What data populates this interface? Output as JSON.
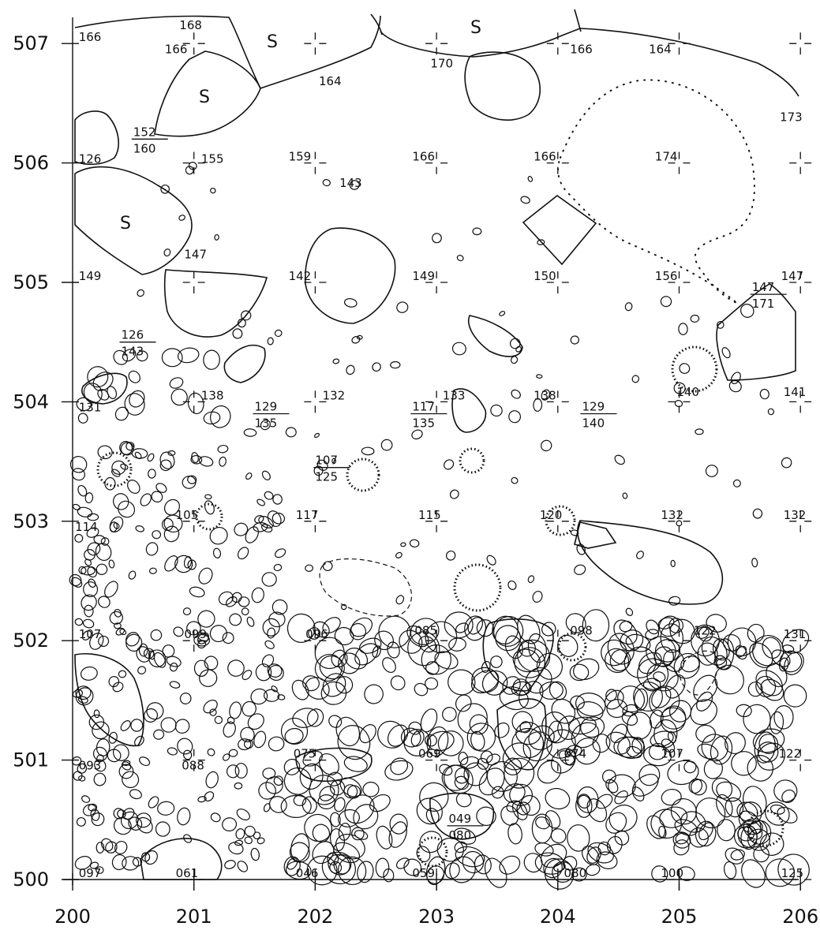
{
  "x_axis_labels": [
    "200",
    "201",
    "202",
    "203",
    "204",
    "205",
    "206"
  ],
  "y_axis_labels": [
    "507",
    "506",
    "505",
    "504",
    "503",
    "502",
    "501",
    "500"
  ],
  "stone_label": "S",
  "elevations": [
    {
      "text": "166",
      "e": 200.05,
      "n": 507.02
    },
    {
      "text": "168",
      "e": 200.88,
      "n": 507.12
    },
    {
      "text": "166",
      "e": 200.76,
      "n": 506.92
    },
    {
      "text": "170",
      "e": 202.95,
      "n": 506.8
    },
    {
      "text": "166",
      "e": 204.1,
      "n": 506.92
    },
    {
      "text": "164",
      "e": 204.75,
      "n": 506.92
    },
    {
      "text": "164",
      "e": 202.03,
      "n": 506.65
    },
    {
      "text": "173",
      "e": 205.83,
      "n": 506.35
    },
    {
      "text": "126",
      "e": 200.05,
      "n": 506.0
    },
    {
      "text": "155",
      "e": 201.06,
      "n": 506.0
    },
    {
      "text": "159",
      "e": 201.78,
      "n": 506.02
    },
    {
      "text": "166",
      "e": 202.8,
      "n": 506.02
    },
    {
      "text": "166",
      "e": 203.8,
      "n": 506.02
    },
    {
      "text": "174",
      "e": 204.8,
      "n": 506.02
    },
    {
      "text": "143",
      "e": 202.2,
      "n": 505.8
    },
    {
      "text": "147",
      "e": 200.92,
      "n": 505.2
    },
    {
      "text": "149",
      "e": 200.05,
      "n": 505.02
    },
    {
      "text": "142",
      "e": 201.78,
      "n": 505.02
    },
    {
      "text": "149",
      "e": 202.8,
      "n": 505.02
    },
    {
      "text": "150",
      "e": 203.8,
      "n": 505.02
    },
    {
      "text": "156",
      "e": 204.8,
      "n": 505.02
    },
    {
      "text": "147",
      "e": 205.84,
      "n": 505.02
    },
    {
      "text": "131",
      "e": 200.05,
      "n": 503.92
    },
    {
      "text": "138",
      "e": 201.06,
      "n": 504.02
    },
    {
      "text": "132",
      "e": 202.06,
      "n": 504.02
    },
    {
      "text": "133",
      "e": 203.05,
      "n": 504.02
    },
    {
      "text": "138",
      "e": 203.8,
      "n": 504.02
    },
    {
      "text": "140",
      "e": 204.98,
      "n": 504.05
    },
    {
      "text": "141",
      "e": 205.86,
      "n": 504.05
    },
    {
      "text": "114",
      "e": 200.02,
      "n": 502.92
    },
    {
      "text": "105",
      "e": 200.85,
      "n": 503.02
    },
    {
      "text": "117",
      "e": 201.84,
      "n": 503.02
    },
    {
      "text": "115",
      "e": 202.85,
      "n": 503.02
    },
    {
      "text": "120",
      "e": 203.85,
      "n": 503.02
    },
    {
      "text": "132",
      "e": 204.85,
      "n": 503.02
    },
    {
      "text": "132",
      "e": 205.86,
      "n": 503.02
    },
    {
      "text": "107",
      "e": 200.05,
      "n": 502.02
    },
    {
      "text": "099",
      "e": 200.92,
      "n": 502.02
    },
    {
      "text": "096",
      "e": 201.92,
      "n": 502.02
    },
    {
      "text": "085",
      "e": 202.82,
      "n": 502.05
    },
    {
      "text": "098",
      "e": 204.1,
      "n": 502.05
    },
    {
      "text": "122",
      "e": 205.12,
      "n": 502.05
    },
    {
      "text": "131",
      "e": 205.86,
      "n": 502.02
    },
    {
      "text": "093",
      "e": 200.05,
      "n": 500.92
    },
    {
      "text": "088",
      "e": 200.9,
      "n": 500.92
    },
    {
      "text": "075",
      "e": 201.82,
      "n": 501.02
    },
    {
      "text": "069",
      "e": 202.85,
      "n": 501.02
    },
    {
      "text": "074",
      "e": 204.05,
      "n": 501.02
    },
    {
      "text": "107",
      "e": 204.85,
      "n": 501.02
    },
    {
      "text": "122",
      "e": 205.82,
      "n": 501.02
    },
    {
      "text": "097",
      "e": 200.05,
      "n": 500.02
    },
    {
      "text": "061",
      "e": 200.85,
      "n": 500.02
    },
    {
      "text": "046",
      "e": 201.84,
      "n": 500.02
    },
    {
      "text": "059",
      "e": 202.8,
      "n": 500.02
    },
    {
      "text": "080",
      "e": 204.05,
      "n": 500.02
    },
    {
      "text": "100",
      "e": 204.85,
      "n": 500.02
    },
    {
      "text": "125",
      "e": 205.84,
      "n": 500.02
    }
  ],
  "fractions": [
    {
      "top": "152",
      "bottom": "160",
      "e": 200.5,
      "n": 506.2
    },
    {
      "top": "126",
      "bottom": "143",
      "e": 200.4,
      "n": 504.5
    },
    {
      "top": "129",
      "bottom": "135",
      "e": 201.5,
      "n": 503.9
    },
    {
      "top": "107",
      "bottom": "125",
      "e": 202.0,
      "n": 503.45
    },
    {
      "top": "117",
      "bottom": "135",
      "e": 202.8,
      "n": 503.9
    },
    {
      "top": "129",
      "bottom": "140",
      "e": 204.2,
      "n": 503.9
    },
    {
      "top": "147",
      "bottom": "171",
      "e": 205.6,
      "n": 504.9
    },
    {
      "top": "049",
      "bottom": "080",
      "e": 203.1,
      "n": 500.45
    }
  ]
}
